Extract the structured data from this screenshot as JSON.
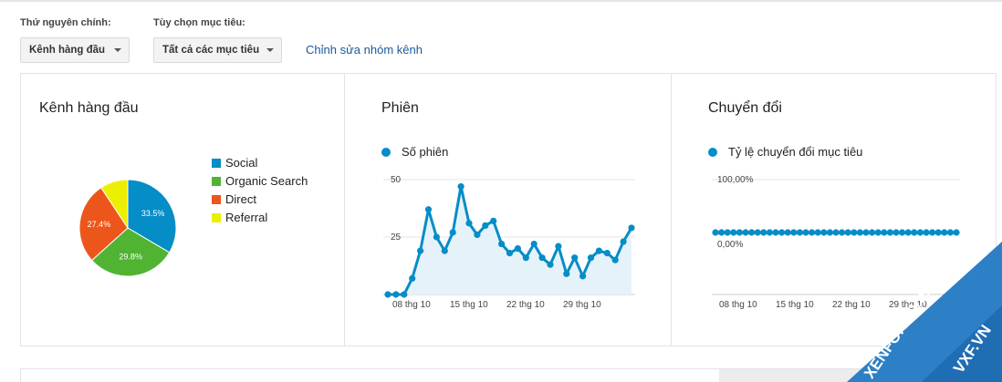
{
  "controls": {
    "primary_dimension_label": "Thứ nguyên chính:",
    "primary_dimension_value": "Kênh hàng đầu",
    "goal_option_label": "Tùy chọn mục tiêu:",
    "goal_option_value": "Tất cả các mục tiêu",
    "edit_channel_group_link": "Chỉnh sửa nhóm kênh"
  },
  "panels": {
    "channels": {
      "title": "Kênh hàng đầu",
      "legend": [
        {
          "label": "Social",
          "color": "#058dc7"
        },
        {
          "label": "Organic Search",
          "color": "#50b432"
        },
        {
          "label": "Direct",
          "color": "#ed561b"
        },
        {
          "label": "Referral",
          "color": "#edef00"
        }
      ]
    },
    "sessions": {
      "title": "Phiên",
      "series_label": "Số phiên"
    },
    "conversions": {
      "title": "Chuyển đổi",
      "series_label": "Tỷ lệ chuyển đổi mục tiêu"
    }
  },
  "chart_data": [
    {
      "type": "pie",
      "categories": [
        "Social",
        "Organic Search",
        "Direct",
        "Referral"
      ],
      "values": [
        33.5,
        29.8,
        27.4,
        9.3
      ],
      "data_labels": [
        "33.5%",
        "29.8%",
        "27.4%",
        ""
      ],
      "colors": [
        "#058dc7",
        "#50b432",
        "#ed561b",
        "#edef00"
      ],
      "legend": "right"
    },
    {
      "type": "area",
      "series": [
        {
          "name": "Số phiên",
          "values": [
            0,
            0,
            0,
            7,
            19,
            37,
            25,
            19,
            27,
            47,
            31,
            26,
            30,
            32,
            22,
            18,
            20,
            16,
            22,
            16,
            13,
            21,
            9,
            16,
            8,
            16,
            19,
            18,
            15,
            23,
            29
          ]
        }
      ],
      "x_tick_labels": [
        "08 thg 10",
        "15 thg 10",
        "22 thg 10",
        "29 thg 10"
      ],
      "y_tick_labels": [
        "50",
        "25"
      ],
      "ylim": [
        0,
        50
      ],
      "color": "#058dc7",
      "grid": true
    },
    {
      "type": "line",
      "series": [
        {
          "name": "Tỷ lệ chuyển đổi mục tiêu",
          "values": [
            0,
            0,
            0,
            0,
            0,
            0,
            0,
            0,
            0,
            0,
            0,
            0,
            0,
            0,
            0,
            0,
            0,
            0,
            0,
            0,
            0,
            0,
            0,
            0,
            0,
            0,
            0,
            0,
            0,
            0,
            0,
            0,
            0,
            0,
            0,
            0,
            0,
            0,
            0,
            0,
            0
          ]
        }
      ],
      "x_tick_labels": [
        "08 thg 10",
        "15 thg 10",
        "22 thg 10",
        "29 thg 10"
      ],
      "y_tick_labels": [
        "100,00%",
        "0,00%"
      ],
      "color": "#058dc7",
      "grid": true
    }
  ],
  "watermark": {
    "line1": "XENFORO VIET NAM",
    "line2": "VXF.VN",
    "color": "#2d7fc6"
  }
}
